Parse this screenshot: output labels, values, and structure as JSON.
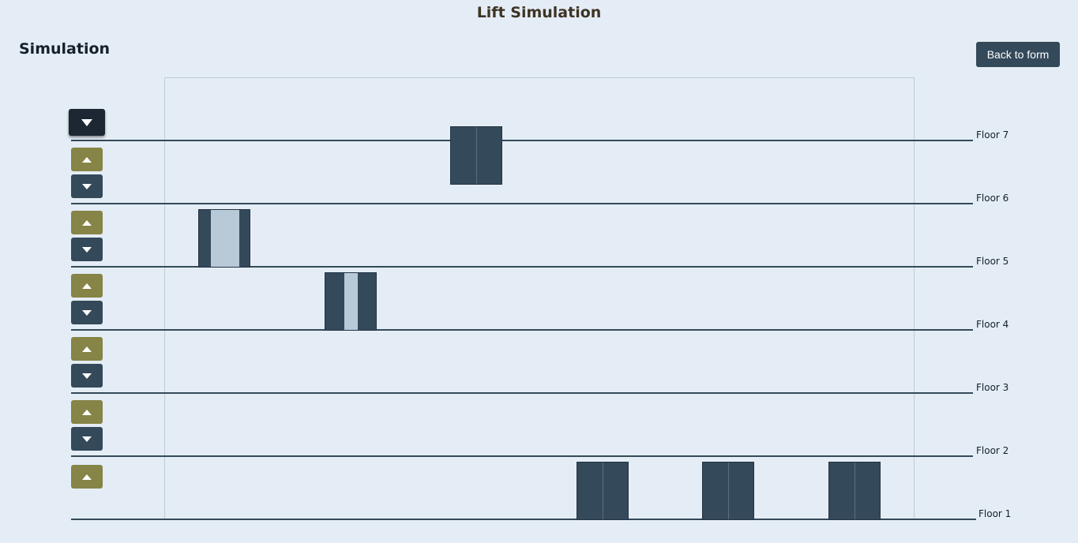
{
  "header": {
    "title": "Lift Simulation"
  },
  "section": {
    "title": "Simulation"
  },
  "actions": {
    "back_label": "Back to form"
  },
  "floors": [
    {
      "label": "Floor 7"
    },
    {
      "label": "Floor 6"
    },
    {
      "label": "Floor 5"
    },
    {
      "label": "Floor 4"
    },
    {
      "label": "Floor 3"
    },
    {
      "label": "Floor 2"
    },
    {
      "label": "Floor 1"
    }
  ],
  "lifts": [
    {
      "id": 1,
      "floor": 5,
      "doors_open_fraction": 0.55
    },
    {
      "id": 2,
      "floor": 4,
      "doors_open_fraction": 0.25
    },
    {
      "id": 3,
      "floor": 6.7,
      "doors_open_fraction": 0
    },
    {
      "id": 4,
      "floor": 1,
      "doors_open_fraction": 0
    },
    {
      "id": 5,
      "floor": 1,
      "doors_open_fraction": 0
    },
    {
      "id": 6,
      "floor": 1,
      "doors_open_fraction": 0
    }
  ],
  "call_buttons": {
    "up_icon": "triangle-up-icon",
    "down_icon": "triangle-down-icon",
    "active": "floor-7-down"
  },
  "colors": {
    "background": "#e4edf5",
    "up_button": "#868446",
    "down_button": "#34495a",
    "lift": "#34495a",
    "door_gap": "#b8cad8"
  }
}
